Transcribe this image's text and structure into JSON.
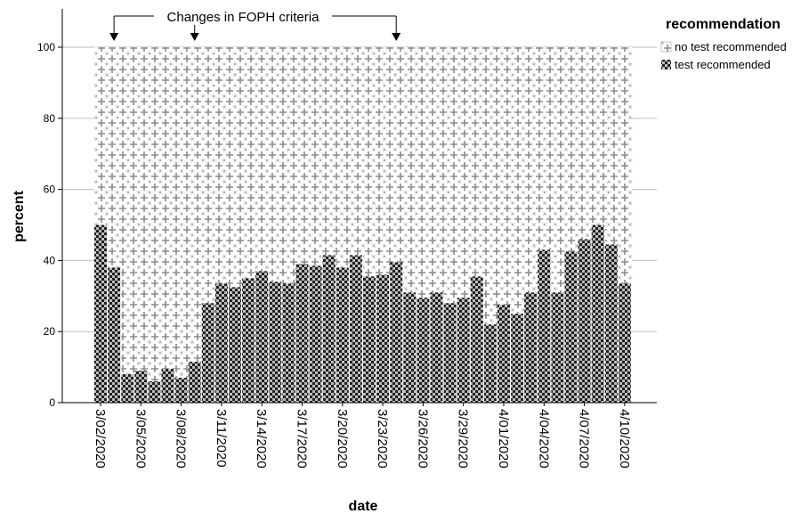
{
  "chart_data": {
    "type": "bar",
    "stacked": true,
    "percent_stacked": true,
    "xlabel": "date",
    "ylabel": "percent",
    "ylim": [
      0,
      100
    ],
    "y_ticks": [
      "0",
      "20",
      "40",
      "60",
      "80",
      "100"
    ],
    "grid": "horizontal",
    "legend": {
      "title": "recommendation",
      "position": "top-right",
      "entries": [
        "no test recommended",
        "test recommended"
      ]
    },
    "annotation": {
      "text": "Changes in FOPH criteria",
      "arrow_dates": [
        "3/03/2020",
        "3/09/2020",
        "3/24/2020"
      ]
    },
    "x_tick_labels": [
      "3/02/2020",
      "3/05/2020",
      "3/08/2020",
      "3/11/2020",
      "3/14/2020",
      "3/17/2020",
      "3/20/2020",
      "3/23/2020",
      "3/26/2020",
      "3/29/2020",
      "4/01/2020",
      "4/04/2020",
      "4/07/2020",
      "4/10/2020"
    ],
    "categories": [
      "3/02/2020",
      "3/03/2020",
      "3/04/2020",
      "3/05/2020",
      "3/06/2020",
      "3/07/2020",
      "3/08/2020",
      "3/09/2020",
      "3/10/2020",
      "3/11/2020",
      "3/12/2020",
      "3/13/2020",
      "3/14/2020",
      "3/15/2020",
      "3/16/2020",
      "3/17/2020",
      "3/18/2020",
      "3/19/2020",
      "3/20/2020",
      "3/21/2020",
      "3/22/2020",
      "3/23/2020",
      "3/24/2020",
      "3/25/2020",
      "3/26/2020",
      "3/27/2020",
      "3/28/2020",
      "3/29/2020",
      "3/30/2020",
      "3/31/2020",
      "4/01/2020",
      "4/02/2020",
      "4/03/2020",
      "4/04/2020",
      "4/05/2020",
      "4/06/2020",
      "4/07/2020",
      "4/08/2020",
      "4/09/2020",
      "4/10/2020"
    ],
    "series": [
      {
        "name": "test recommended",
        "values": [
          50,
          38,
          8,
          9,
          6,
          9.5,
          7,
          11.5,
          28,
          33.5,
          32.5,
          35,
          37,
          34,
          33.5,
          39,
          38.5,
          41.5,
          38,
          41.5,
          35.5,
          36,
          39.5,
          31,
          29.5,
          31,
          28,
          29.5,
          35.5,
          22,
          27.5,
          25,
          31,
          43,
          31,
          42.5,
          46,
          50,
          44.5,
          33.5
        ]
      },
      {
        "name": "no test recommended",
        "values": [
          50,
          62,
          92,
          91,
          94,
          90.5,
          93,
          88.5,
          72,
          66.5,
          67.5,
          65,
          63,
          66,
          66.5,
          61,
          61.5,
          58.5,
          62,
          58.5,
          64.5,
          64,
          60.5,
          69,
          70.5,
          69,
          72,
          70.5,
          64.5,
          78,
          72.5,
          75,
          69,
          57,
          69,
          57.5,
          54,
          50,
          55.5,
          66.5
        ]
      }
    ],
    "colors": {
      "test_dark": "#1f1f1f",
      "test_light": "#bdbdbd",
      "no_test_bg": "#ffffff",
      "no_test_fg": "#8a8a8a",
      "gridline": "#c8c8c8",
      "axis": "#000000"
    }
  }
}
